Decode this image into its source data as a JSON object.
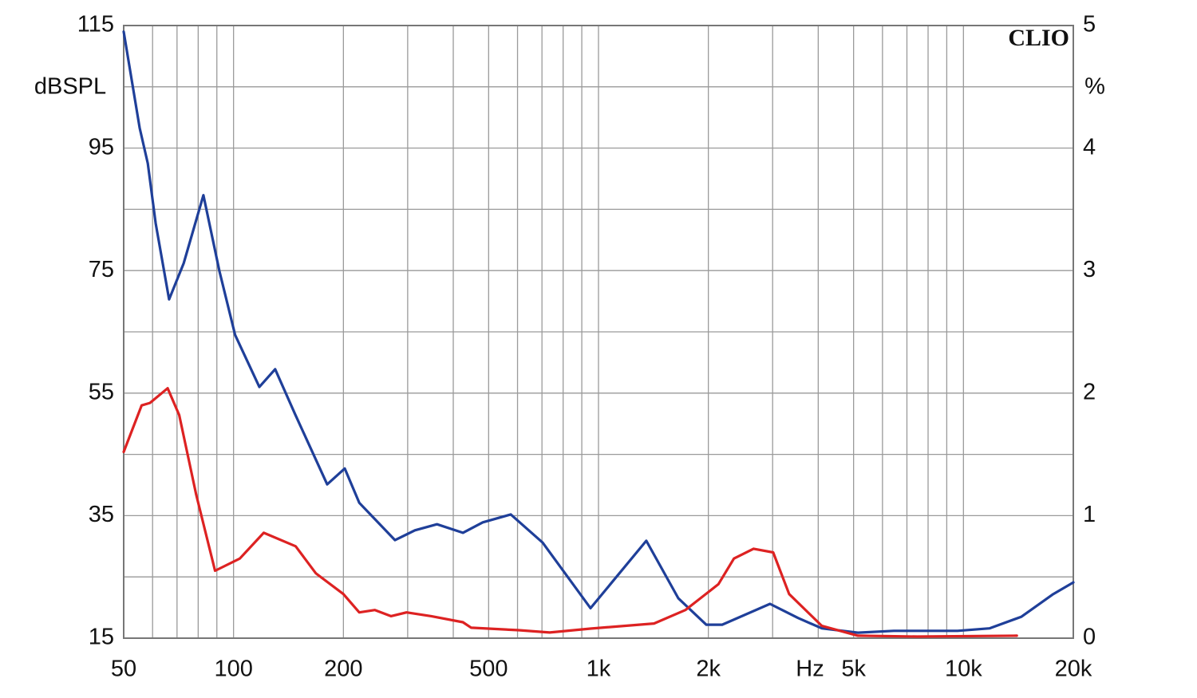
{
  "chart_data": {
    "type": "line",
    "brand": "CLIO",
    "ylabel": "dBSPL",
    "y2label": "%",
    "xlabel": "Hz",
    "xscale": "log",
    "xlim": [
      50,
      20000
    ],
    "ylim": [
      15,
      115
    ],
    "y2lim": [
      0,
      5
    ],
    "xticks": [
      50,
      100,
      200,
      500,
      {
        "value": 1000,
        "label": "1k"
      },
      {
        "value": 2000,
        "label": "2k"
      },
      {
        "value": 5000,
        "label": "5k"
      },
      {
        "value": 10000,
        "label": "10k"
      },
      {
        "value": 20000,
        "label": "20k"
      }
    ],
    "xgrid": [
      50,
      60,
      70,
      80,
      90,
      100,
      200,
      300,
      400,
      500,
      600,
      700,
      800,
      900,
      1000,
      2000,
      3000,
      4000,
      5000,
      6000,
      7000,
      8000,
      9000,
      10000,
      20000
    ],
    "yticks": [
      15,
      35,
      55,
      75,
      95,
      115
    ],
    "ygrid": [
      15,
      25,
      35,
      45,
      55,
      65,
      75,
      85,
      95,
      105,
      115
    ],
    "y2ticks": [
      0,
      1,
      2,
      3,
      4,
      5
    ],
    "grid": true,
    "series": [
      {
        "color": "#1f3f99",
        "axis": "y",
        "x": [
          50,
          55.3,
          58.2,
          61.2,
          66.6,
          73,
          82.7,
          91.5,
          101,
          117.7,
          130,
          147.6,
          180.5,
          201.7,
          221,
          277,
          314,
          361,
          425,
          482,
          575,
          703,
          951,
          1352,
          1655,
          1973,
          2182,
          2951,
          3522,
          4093,
          5140,
          6442,
          9638,
          11780,
          14420,
          17630,
          20000
        ],
        "values": [
          114,
          98.3,
          92.5,
          82.7,
          70.3,
          76.2,
          87.3,
          74.9,
          64.5,
          56,
          58.9,
          51.5,
          40.1,
          42.7,
          37.1,
          31,
          32.6,
          33.6,
          32.2,
          33.9,
          35.2,
          30.6,
          19.9,
          30.9,
          21.5,
          17.2,
          17.2,
          20.6,
          18.3,
          16.6,
          15.9,
          16.2,
          16.2,
          16.6,
          18.5,
          22.2,
          24.1
        ]
      },
      {
        "color": "#dd2222",
        "axis": "y2",
        "x": [
          50,
          56,
          59,
          66,
          71,
          79,
          89,
          104,
          121,
          148,
          168,
          200,
          221,
          244,
          270,
          298,
          348,
          425,
          448,
          605,
          735,
          951,
          1420,
          1730,
          2130,
          2350,
          2660,
          3010,
          3330,
          4093,
          5140,
          7470,
          14000
        ],
        "values": [
          1.52,
          1.9,
          1.92,
          2.04,
          1.82,
          1.17,
          0.55,
          0.65,
          0.86,
          0.75,
          0.53,
          0.36,
          0.21,
          0.23,
          0.18,
          0.21,
          0.18,
          0.13,
          0.085,
          0.065,
          0.046,
          0.078,
          0.12,
          0.23,
          0.44,
          0.65,
          0.73,
          0.7,
          0.36,
          0.1,
          0.02,
          0.013,
          0.02
        ]
      }
    ]
  }
}
